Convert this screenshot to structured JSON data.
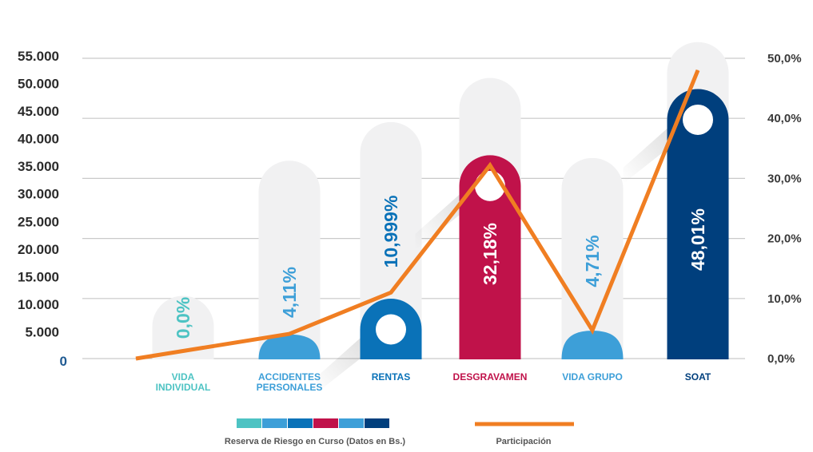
{
  "chart_data": {
    "type": "bar",
    "categories": [
      "VIDA\nINDIVIDUAL",
      "ACCIDENTES\nPERSONALES",
      "RENTAS",
      "DESGRAVAMEN",
      "VIDA GRUPO",
      "SOAT"
    ],
    "series": [
      {
        "name": "Reserva de Riesgo en Curso (Datos en Bs.)",
        "type": "bar",
        "values": [
          0,
          4500,
          11000,
          37000,
          5200,
          49000
        ],
        "labels": [
          "0,0%",
          "4,11%",
          "10,999%",
          "32,18%",
          "4,71%",
          "48,01%"
        ],
        "colors": [
          "#4dc3c3",
          "#3d9fd8",
          "#0a72b8",
          "#c0124a",
          "#3d9fd8",
          "#003f7d"
        ]
      },
      {
        "name": "Participación",
        "type": "line",
        "axis": "right",
        "values": [
          0.0,
          4.11,
          10.999,
          32.18,
          4.71,
          48.01
        ],
        "color": "#f07e22"
      }
    ],
    "y_left": {
      "ticks": [
        0,
        5000,
        10000,
        15000,
        20000,
        25000,
        30000,
        35000,
        40000,
        45000,
        50000,
        55000
      ],
      "tick_labels": [
        "0",
        "5.000",
        "10.000",
        "15.000",
        "20.000",
        "25.000",
        "30.000",
        "35.000",
        "40.000",
        "45.000",
        "50.000",
        "55.000"
      ]
    },
    "y_right": {
      "ticks": [
        0,
        10,
        20,
        30,
        40,
        50
      ],
      "tick_labels": [
        "0,0%",
        "10,0%",
        "20,0%",
        "30,0%",
        "40,0%",
        "50,0%"
      ]
    },
    "background_pill_values": [
      11500,
      36000,
      43000,
      51000,
      36500,
      57500
    ],
    "grid": true,
    "legend_position": "bottom",
    "category_label_colors": [
      "#4dc3c3",
      "#3d9fd8",
      "#0a72b8",
      "#c0124a",
      "#3d9fd8",
      "#003f7d"
    ]
  }
}
